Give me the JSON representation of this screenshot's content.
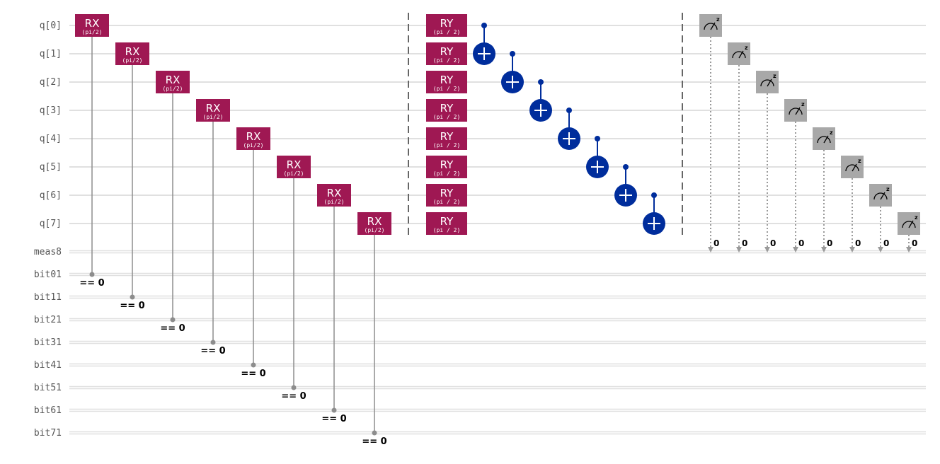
{
  "circuit": {
    "qubit_wires": [
      "q[0]",
      "q[1]",
      "q[2]",
      "q[3]",
      "q[4]",
      "q[5]",
      "q[6]",
      "q[7]"
    ],
    "measure_register": "meas8",
    "classical_wires": [
      "bit01",
      "bit11",
      "bit21",
      "bit31",
      "bit41",
      "bit51",
      "bit61",
      "bit71"
    ],
    "rx_gates": {
      "label": "RX",
      "param": "(pi/2)",
      "condition": "== 0",
      "qubits": [
        0,
        1,
        2,
        3,
        4,
        5,
        6,
        7
      ]
    },
    "ry_gates": {
      "label": "RY",
      "param": "(pi / 2)",
      "qubits": [
        0,
        1,
        2,
        3,
        4,
        5,
        6,
        7
      ]
    },
    "cnot_chain": [
      {
        "control": 0,
        "target": 1
      },
      {
        "control": 1,
        "target": 2
      },
      {
        "control": 2,
        "target": 3
      },
      {
        "control": 3,
        "target": 4
      },
      {
        "control": 4,
        "target": 5
      },
      {
        "control": 5,
        "target": 6
      },
      {
        "control": 6,
        "target": 7
      }
    ],
    "measurements": {
      "basis_label": "z",
      "bit_label": "0",
      "qubits": [
        0,
        1,
        2,
        3,
        4,
        5,
        6,
        7
      ]
    },
    "colors": {
      "rotation_gate": "#9f1853",
      "cnot": "#002d9c",
      "measure": "#a8a8a8",
      "wire": "#e0e0e0",
      "classical_control": "#8d8d8d",
      "barrier": "#666666"
    }
  }
}
